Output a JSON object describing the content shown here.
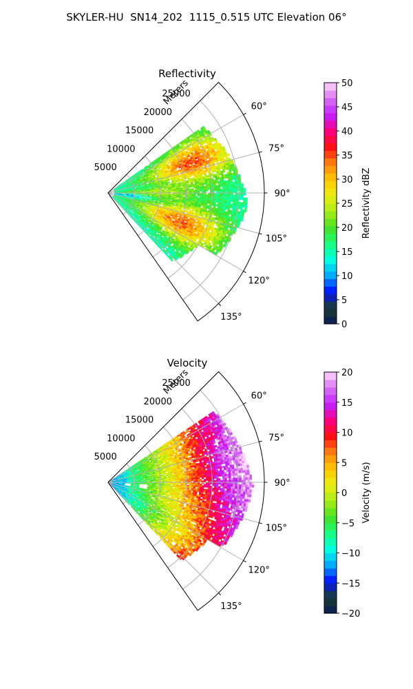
{
  "figure": {
    "title": "SKYLER-HU  SN14_202  1115_0.515 UTC Elevation 06°"
  },
  "chart_data": [
    {
      "type": "heatmap",
      "projection": "polar-sector",
      "title": "Reflectivity",
      "radial_label": "Meters",
      "radial_ticks": [
        5000,
        10000,
        15000,
        20000,
        25000
      ],
      "radial_tick_labels": [
        "5000",
        "10000",
        "15000",
        "20000",
        "25000"
      ],
      "r_max": 30000,
      "azimuth_range_deg": [
        45,
        145
      ],
      "azimuth_ticks": [
        60,
        75,
        90,
        105,
        120,
        135
      ],
      "azimuth_tick_labels": [
        "60°",
        "75°",
        "90°",
        "105°",
        "120°",
        "135°"
      ],
      "grid": true,
      "colorbar": {
        "label": "Reflectivity dBZ",
        "vmin": 0,
        "vmax": 50,
        "ticks": [
          0,
          5,
          10,
          15,
          20,
          25,
          30,
          35,
          40,
          45,
          50
        ],
        "tick_labels": [
          "0",
          "5",
          "10",
          "15",
          "20",
          "25",
          "30",
          "35",
          "40",
          "45",
          "50"
        ],
        "colors": [
          "#0a1a5a",
          "#1d3f2e",
          "#0010ff",
          "#00a8ff",
          "#00ffe0",
          "#18ff80",
          "#48e020",
          "#a8ee18",
          "#eeee10",
          "#ffc800",
          "#ff8010",
          "#ff1010",
          "#ff0080",
          "#c020ff",
          "#d870f0",
          "#ffd8ff"
        ]
      },
      "features": [
        {
          "az": [
            58,
            82
          ],
          "r": [
            10000,
            26000
          ],
          "value": 34
        },
        {
          "az": [
            98,
            125
          ],
          "r": [
            9000,
            24000
          ],
          "value": 33
        },
        {
          "az": [
            83,
            97
          ],
          "r": [
            2000,
            20000
          ],
          "value": 22
        },
        {
          "az": [
            88,
            102
          ],
          "r": [
            1000,
            8000
          ],
          "value": 13
        }
      ]
    },
    {
      "type": "heatmap",
      "projection": "polar-sector",
      "title": "Velocity",
      "radial_label": "Meters",
      "radial_ticks": [
        5000,
        10000,
        15000,
        20000,
        25000
      ],
      "radial_tick_labels": [
        "5000",
        "10000",
        "15000",
        "20000",
        "25000"
      ],
      "r_max": 30000,
      "azimuth_range_deg": [
        45,
        145
      ],
      "azimuth_ticks": [
        60,
        75,
        90,
        105,
        120,
        135
      ],
      "azimuth_tick_labels": [
        "60°",
        "75°",
        "90°",
        "105°",
        "120°",
        "135°"
      ],
      "grid": true,
      "colorbar": {
        "label": "Velocity (m/s)",
        "vmin": -20,
        "vmax": 20,
        "ticks": [
          -20,
          -15,
          -10,
          -5,
          0,
          5,
          10,
          15,
          20
        ],
        "tick_labels": [
          "−20",
          "−15",
          "−10",
          "−5",
          "0",
          "5",
          "10",
          "15",
          "20"
        ],
        "colors": [
          "#0a1a5a",
          "#1d3f2e",
          "#0010ff",
          "#00a8ff",
          "#00ffe0",
          "#18ff80",
          "#48e020",
          "#a8ee18",
          "#eeee10",
          "#ffc800",
          "#ff8010",
          "#ff1010",
          "#ff0080",
          "#c020ff",
          "#d870f0",
          "#ffd8ff"
        ]
      },
      "features": [
        {
          "az": [
            55,
            145
          ],
          "r": [
            0,
            30000
          ],
          "value": "near-radar -12 m/s rising to +15 m/s at far range"
        }
      ]
    }
  ]
}
